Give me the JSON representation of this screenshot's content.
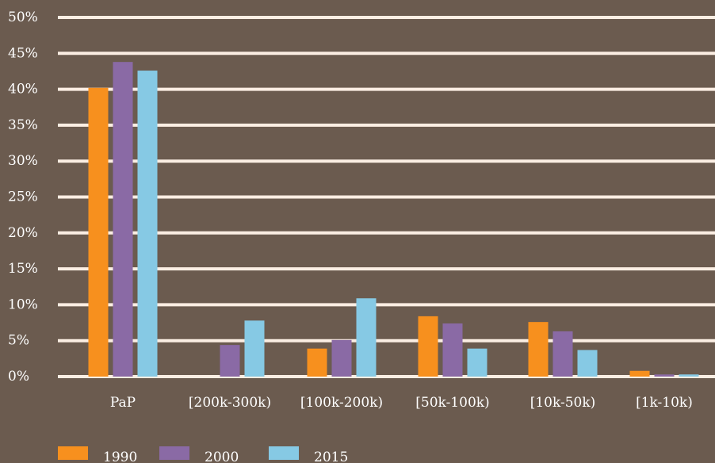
{
  "chart_data": {
    "type": "bar",
    "categories": [
      "PaP",
      "[200k-300k)",
      "[100k-200k)",
      "[50k-100k)",
      "[10k-50k)",
      "[1k-10k)"
    ],
    "series": [
      {
        "name": "1990",
        "values": [
          40.2,
          0,
          3.9,
          8.4,
          7.6,
          0.8
        ],
        "color": "#f7901e"
      },
      {
        "name": "2000",
        "values": [
          43.8,
          4.4,
          5.1,
          7.4,
          6.3,
          0.3
        ],
        "color": "#8a6aa5"
      },
      {
        "name": "2015",
        "values": [
          42.6,
          7.8,
          10.9,
          3.9,
          3.7,
          0.3
        ],
        "color": "#86c9e4"
      }
    ],
    "y_ticks": [
      "0%",
      "5%",
      "10%",
      "15%",
      "20%",
      "25%",
      "30%",
      "35%",
      "40%",
      "45%",
      "50%"
    ],
    "ylim": [
      0,
      50
    ],
    "grid": true,
    "legend_position": "bottom-left",
    "background": "#6b5b4f",
    "grid_color": "#fbeee3"
  }
}
